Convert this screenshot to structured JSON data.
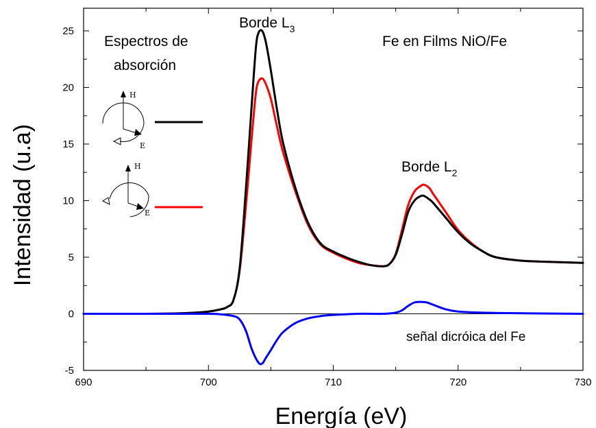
{
  "chart_data": {
    "type": "line",
    "title": "",
    "xlabel": "Energía (eV)",
    "ylabel": "Intensidad (u.a)",
    "xlim": [
      690,
      730
    ],
    "ylim": [
      -5,
      27
    ],
    "x_ticks": [
      690,
      700,
      710,
      720,
      730
    ],
    "y_ticks": [
      -5,
      0,
      5,
      10,
      15,
      20,
      25
    ],
    "grid": false,
    "legend_position": "left",
    "annotations": {
      "top_right": "Fe  en Films NiO/Fe",
      "legend_title_line1": "Espectros de",
      "legend_title_line2": "absorción",
      "l3_label": "Borde L",
      "l3_sub": "3",
      "l2_label": "Borde L",
      "l2_sub": "2",
      "dichroic_label": "señal dicróica del Fe",
      "legend_h_letter": "H",
      "legend_e_letter": "E"
    },
    "series": [
      {
        "color": "#000000",
        "x": [
          690,
          695,
          698,
          700,
          701,
          701.5,
          702,
          702.5,
          703,
          703.5,
          703.8,
          704.0,
          704.3,
          704.6,
          705,
          705.5,
          706,
          707,
          708,
          709,
          710,
          711,
          712,
          713,
          714,
          714.5,
          715,
          715.5,
          716,
          716.5,
          717.0,
          717.3,
          717.7,
          718,
          719,
          720,
          721,
          722,
          723,
          725,
          727,
          730
        ],
        "y": [
          0,
          0,
          0.05,
          0.2,
          0.4,
          0.6,
          1.2,
          4.0,
          11.0,
          19.0,
          23.5,
          24.8,
          25.0,
          24.0,
          21.5,
          18.0,
          15.0,
          11.0,
          8.0,
          6.2,
          5.5,
          5.0,
          4.6,
          4.3,
          4.2,
          4.4,
          5.2,
          7.0,
          9.0,
          10.0,
          10.4,
          10.4,
          10.1,
          9.8,
          8.5,
          7.2,
          6.2,
          5.5,
          5.0,
          4.7,
          4.6,
          4.5
        ]
      },
      {
        "color": "#ff0000",
        "x": [
          690,
          695,
          698,
          700,
          701,
          701.5,
          702,
          702.5,
          703,
          703.5,
          703.8,
          704.0,
          704.3,
          704.6,
          705,
          705.5,
          706,
          707,
          708,
          709,
          710,
          711,
          712,
          713,
          714,
          714.5,
          715,
          715.5,
          716,
          716.5,
          717.0,
          717.3,
          717.7,
          718,
          719,
          720,
          721,
          722,
          723,
          725,
          727,
          730
        ],
        "y": [
          0,
          0,
          0.05,
          0.2,
          0.4,
          0.6,
          1.2,
          3.8,
          9.5,
          16.0,
          19.5,
          20.5,
          20.8,
          20.3,
          19.0,
          16.5,
          14.2,
          10.7,
          7.8,
          6.1,
          5.4,
          4.9,
          4.5,
          4.3,
          4.2,
          4.4,
          5.3,
          7.4,
          9.6,
          10.8,
          11.3,
          11.4,
          11.1,
          10.6,
          9.0,
          7.4,
          6.3,
          5.5,
          5.0,
          4.7,
          4.6,
          4.5
        ]
      },
      {
        "color": "#0000ff",
        "x": [
          690,
          695,
          700,
          701,
          702,
          702.5,
          703,
          703.5,
          704.0,
          704.3,
          704.6,
          705,
          705.5,
          706,
          707,
          708,
          709,
          710,
          712,
          714,
          715,
          715.5,
          716,
          716.5,
          717.0,
          717.5,
          718,
          719,
          720,
          722,
          725,
          730
        ],
        "y": [
          0,
          0,
          0,
          -0.05,
          -0.2,
          -0.5,
          -1.5,
          -3.2,
          -4.3,
          -4.4,
          -3.9,
          -3.2,
          -2.3,
          -1.6,
          -0.8,
          -0.4,
          -0.2,
          -0.1,
          0,
          0,
          0.1,
          0.3,
          0.7,
          1.0,
          1.05,
          1.0,
          0.8,
          0.4,
          0.2,
          0.1,
          0.05,
          0
        ]
      }
    ]
  }
}
